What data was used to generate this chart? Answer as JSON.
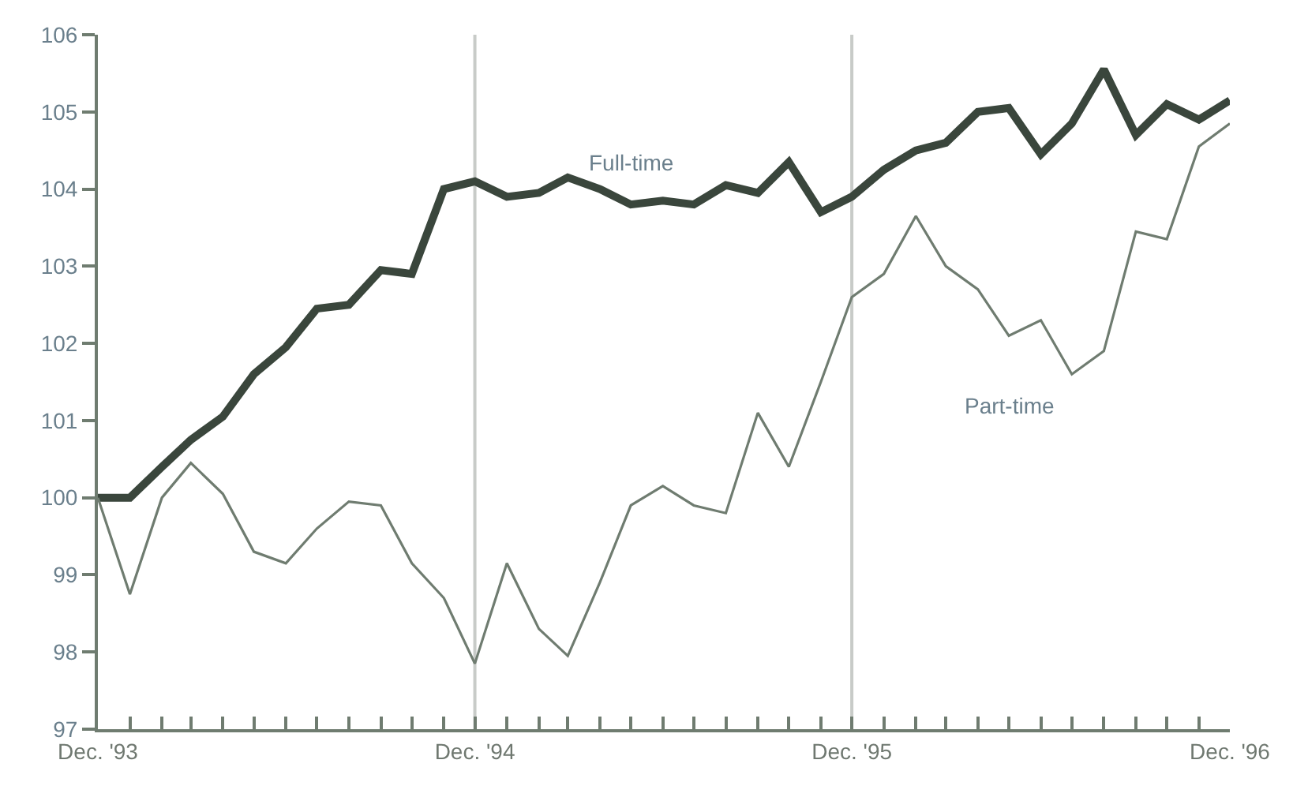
{
  "chart_data": {
    "type": "line",
    "x": [
      "1993-12",
      "1994-01",
      "1994-02",
      "1994-03",
      "1994-04",
      "1994-05",
      "1994-06",
      "1994-07",
      "1994-08",
      "1994-09",
      "1994-10",
      "1994-11",
      "1994-12",
      "1995-01",
      "1995-02",
      "1995-03",
      "1995-04",
      "1995-05",
      "1995-06",
      "1995-07",
      "1995-08",
      "1995-09",
      "1995-10",
      "1995-11",
      "1995-12",
      "1996-01",
      "1996-02",
      "1996-03",
      "1996-04",
      "1996-05",
      "1996-06",
      "1996-07",
      "1996-08",
      "1996-09",
      "1996-10",
      "1996-11",
      "1996-12"
    ],
    "series": [
      {
        "name": "Full-time",
        "color": "#3a463c",
        "values": [
          100.0,
          100.0,
          100.4,
          100.75,
          101.05,
          101.6,
          101.95,
          102.45,
          102.5,
          102.95,
          102.9,
          104.0,
          104.1,
          103.9,
          103.95,
          104.15,
          104.0,
          103.8,
          103.85,
          103.8,
          104.05,
          103.95,
          104.35,
          103.7,
          103.9,
          104.25,
          104.5,
          104.6,
          105.0,
          105.05,
          104.45,
          104.85,
          105.55,
          104.7,
          105.1,
          104.9,
          105.15
        ]
      },
      {
        "name": "Part-time",
        "color": "#6f7c70",
        "values": [
          100.0,
          98.75,
          100.0,
          100.45,
          100.05,
          99.3,
          99.15,
          99.6,
          99.95,
          99.9,
          99.15,
          98.7,
          97.85,
          99.15,
          98.3,
          97.95,
          98.9,
          99.9,
          100.15,
          99.9,
          99.8,
          101.1,
          100.4,
          101.5,
          102.6,
          102.9,
          103.65,
          103.0,
          102.7,
          102.1,
          102.3,
          101.6,
          101.9,
          103.45,
          103.35,
          104.55,
          104.85
        ]
      }
    ],
    "ylim": [
      97,
      106
    ],
    "yticks": [
      97,
      98,
      99,
      100,
      101,
      102,
      103,
      104,
      105,
      106
    ],
    "xlim": [
      "1993-12",
      "1996-12"
    ],
    "xticks": [
      {
        "value": "1993-12",
        "label": "Dec. '93"
      },
      {
        "value": "1994-01",
        "label": null
      },
      {
        "value": "1994-02",
        "label": null
      },
      {
        "value": "1994-03",
        "label": null
      },
      {
        "value": "1994-04",
        "label": null
      },
      {
        "value": "1994-05",
        "label": null
      },
      {
        "value": "1994-06",
        "label": null
      },
      {
        "value": "1994-07",
        "label": null
      },
      {
        "value": "1994-08",
        "label": null
      },
      {
        "value": "1994-09",
        "label": null
      },
      {
        "value": "1994-10",
        "label": null
      },
      {
        "value": "1994-11",
        "label": null
      },
      {
        "value": "1994-12",
        "label": "Dec. '94"
      },
      {
        "value": "1995-01",
        "label": null
      },
      {
        "value": "1995-02",
        "label": null
      },
      {
        "value": "1995-03",
        "label": null
      },
      {
        "value": "1995-04",
        "label": null
      },
      {
        "value": "1995-05",
        "label": null
      },
      {
        "value": "1995-06",
        "label": null
      },
      {
        "value": "1995-07",
        "label": null
      },
      {
        "value": "1995-08",
        "label": null
      },
      {
        "value": "1995-09",
        "label": null
      },
      {
        "value": "1995-10",
        "label": null
      },
      {
        "value": "1995-11",
        "label": null
      },
      {
        "value": "1995-12",
        "label": "Dec. '95"
      },
      {
        "value": "1996-01",
        "label": null
      },
      {
        "value": "1996-02",
        "label": null
      },
      {
        "value": "1996-03",
        "label": null
      },
      {
        "value": "1996-04",
        "label": null
      },
      {
        "value": "1996-05",
        "label": null
      },
      {
        "value": "1996-06",
        "label": null
      },
      {
        "value": "1996-07",
        "label": null
      },
      {
        "value": "1996-08",
        "label": null
      },
      {
        "value": "1996-09",
        "label": null
      },
      {
        "value": "1996-10",
        "label": null
      },
      {
        "value": "1996-11",
        "label": null
      },
      {
        "value": "1996-12",
        "label": "Dec. '96"
      }
    ],
    "ref_lines": [
      {
        "axis": "x",
        "value": "1994-12",
        "color": "#c8cbc8"
      },
      {
        "axis": "x",
        "value": "1995-12",
        "color": "#c8cbc8"
      }
    ],
    "grid": false,
    "legend": false,
    "marker": "none",
    "line_style": "solid"
  }
}
